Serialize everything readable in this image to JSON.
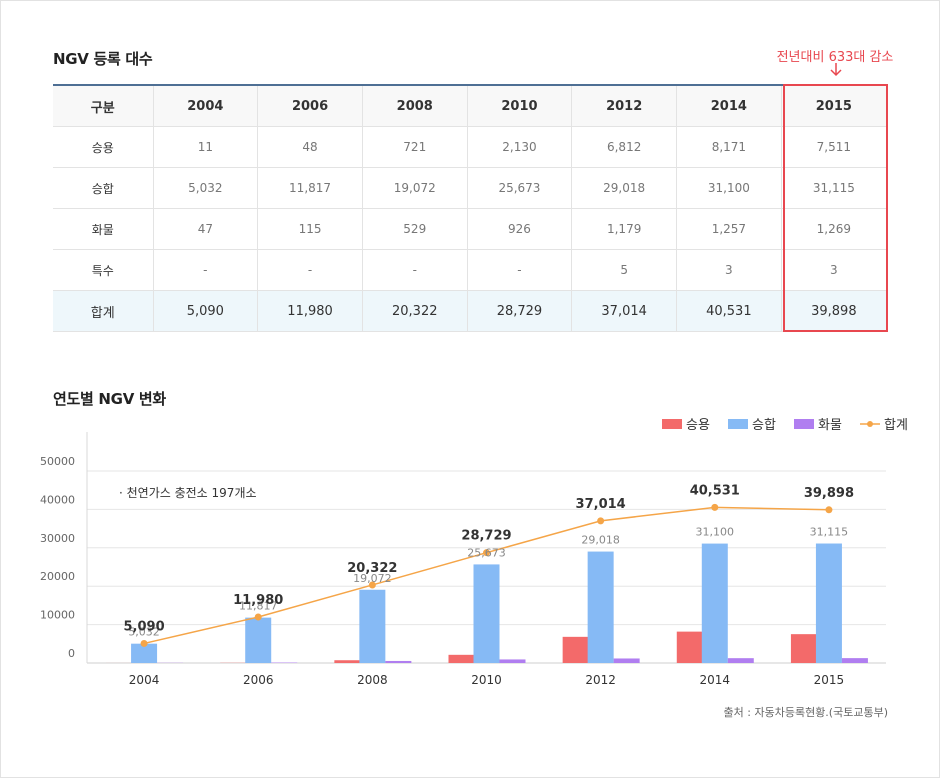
{
  "table_section": {
    "title": "NGV 등록 대수",
    "note": "전년대비 633대 감소",
    "header": [
      "구분",
      "2004",
      "2006",
      "2008",
      "2010",
      "2012",
      "2014",
      "2015"
    ],
    "rows": [
      [
        "승용",
        "11",
        "48",
        "721",
        "2,130",
        "6,812",
        "8,171",
        "7,511"
      ],
      [
        "승합",
        "5,032",
        "11,817",
        "19,072",
        "25,673",
        "29,018",
        "31,100",
        "31,115"
      ],
      [
        "화물",
        "47",
        "115",
        "529",
        "926",
        "1,179",
        "1,257",
        "1,269"
      ],
      [
        "특수",
        "-",
        "-",
        "-",
        "-",
        "5",
        "3",
        "3"
      ]
    ],
    "total_row": [
      "합계",
      "5,090",
      "11,980",
      "20,322",
      "28,729",
      "37,014",
      "40,531",
      "39,898"
    ]
  },
  "chart_section": {
    "title": "연도별 NGV 변화",
    "annotation": "· 천연가스 충전소 197개소",
    "source": "출처 : 자동차등록현황.(국토교통부)"
  },
  "colors": {
    "passenger": "#f36a6a",
    "van": "#86baf5",
    "truck": "#b07ef0",
    "total": "#f5a548",
    "highlight": "#e8474f",
    "table_head_border": "#4e6f94",
    "total_row_bg": "#eef7fb"
  },
  "chart_data": {
    "type": "bar",
    "categories": [
      "2004",
      "2006",
      "2008",
      "2010",
      "2012",
      "2014",
      "2015"
    ],
    "series": [
      {
        "name": "승용",
        "type": "bar",
        "values": [
          11,
          48,
          721,
          2130,
          6812,
          8171,
          7511
        ]
      },
      {
        "name": "승합",
        "type": "bar",
        "values": [
          5032,
          11817,
          19072,
          25673,
          29018,
          31100,
          31115
        ]
      },
      {
        "name": "화물",
        "type": "bar",
        "values": [
          47,
          115,
          529,
          926,
          1179,
          1257,
          1269
        ]
      },
      {
        "name": "합계",
        "type": "line",
        "values": [
          5090,
          11980,
          20322,
          28729,
          37014,
          40531,
          39898
        ]
      }
    ],
    "van_labels": [
      "5,032",
      "11,817",
      "19,072",
      "25,673",
      "29,018",
      "31,100",
      "31,115"
    ],
    "total_labels": [
      "5,090",
      "11,980",
      "20,322",
      "28,729",
      "37,014",
      "40,531",
      "39,898"
    ],
    "y_ticks": [
      "0",
      "10000",
      "20000",
      "30000",
      "40000",
      "50000"
    ],
    "ylim": [
      0,
      50000
    ],
    "grid": true,
    "legend": "top-right"
  }
}
